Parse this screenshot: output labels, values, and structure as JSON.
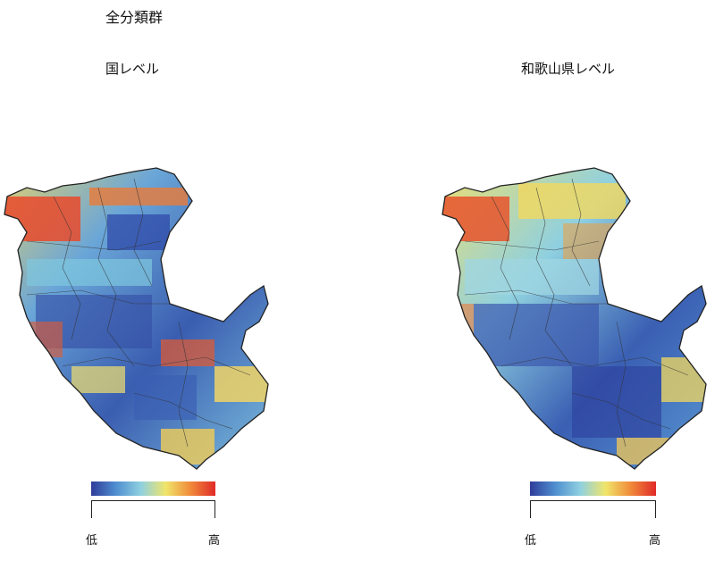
{
  "title": "全分類群",
  "panels": [
    {
      "label": "国レベル",
      "legend": {
        "low": "低",
        "high": "高"
      }
    },
    {
      "label": "和歌山県レベル",
      "legend": {
        "low": "低",
        "high": "高"
      }
    }
  ],
  "colors": {
    "scale": [
      "#2f3c9a",
      "#4f8fd0",
      "#8fd0e0",
      "#f0e56a",
      "#f08a3a",
      "#e02a28"
    ],
    "border": "#222222"
  }
}
